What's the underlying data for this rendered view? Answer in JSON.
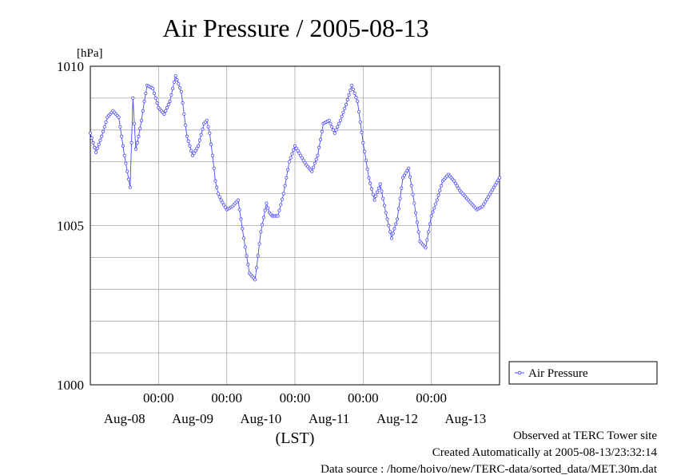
{
  "chart_data": {
    "type": "line",
    "title": "Air Pressure / 2005-08-13",
    "ylabel": "[hPa]",
    "xlabel": "(LST)",
    "ylim": [
      1000,
      1010
    ],
    "y_major_ticks": [
      "1000",
      "1005",
      "1010"
    ],
    "x_tick_time_label": "00:00",
    "x_day_labels": [
      "Aug-08",
      "Aug-09",
      "Aug-10",
      "Aug-11",
      "Aug-12",
      "Aug-13"
    ],
    "x_range_hours": [
      0,
      144
    ],
    "grid": true,
    "legend_position": "right",
    "series": [
      {
        "name": "Air Pressure",
        "color": "#4848ff",
        "x_hours": [
          0,
          1,
          2,
          4,
          6,
          8,
          10,
          12,
          14,
          15,
          16,
          17,
          18,
          19,
          20,
          22,
          24,
          26,
          28,
          30,
          32,
          34,
          36,
          38,
          40,
          41,
          42,
          43,
          44,
          45,
          46,
          48,
          50,
          52,
          54,
          56,
          58,
          60,
          62,
          63,
          64,
          66,
          68,
          70,
          72,
          74,
          76,
          78,
          80,
          81,
          82,
          84,
          86,
          88,
          90,
          92,
          94,
          96,
          98,
          100,
          102,
          104,
          106,
          108,
          110,
          112,
          114,
          116,
          118,
          120,
          122,
          124,
          126,
          128,
          130,
          132,
          134,
          136,
          138,
          140,
          142,
          144
        ],
        "values": [
          1007.9,
          1007.6,
          1007.3,
          1007.8,
          1008.4,
          1008.6,
          1008.4,
          1007.2,
          1006.2,
          1009.0,
          1007.4,
          1007.8,
          1008.3,
          1008.9,
          1009.4,
          1009.3,
          1008.7,
          1008.5,
          1008.9,
          1009.7,
          1009.2,
          1007.8,
          1007.2,
          1007.5,
          1008.2,
          1008.3,
          1007.9,
          1007.2,
          1006.4,
          1006.0,
          1005.8,
          1005.5,
          1005.6,
          1005.8,
          1004.6,
          1003.5,
          1003.3,
          1004.8,
          1005.7,
          1005.4,
          1005.3,
          1005.3,
          1006.0,
          1007.0,
          1007.5,
          1007.2,
          1006.9,
          1006.7,
          1007.2,
          1007.7,
          1008.2,
          1008.3,
          1007.9,
          1008.3,
          1008.8,
          1009.4,
          1008.9,
          1007.6,
          1006.5,
          1005.8,
          1006.3,
          1005.4,
          1004.6,
          1005.2,
          1006.5,
          1006.8,
          1005.7,
          1004.5,
          1004.3,
          1005.3,
          1005.8,
          1006.4,
          1006.6,
          1006.4,
          1006.1,
          1005.9,
          1005.7,
          1005.5,
          1005.6,
          1005.9,
          1006.2,
          1006.5
        ]
      }
    ]
  },
  "footer": {
    "observed": "Observed at TERC Tower site",
    "created": "Created Automatically at 2005-08-13/23:32:14",
    "source": "Data source : /home/hoivo/new/TERC-data/sorted_data/MET.30m.dat"
  }
}
